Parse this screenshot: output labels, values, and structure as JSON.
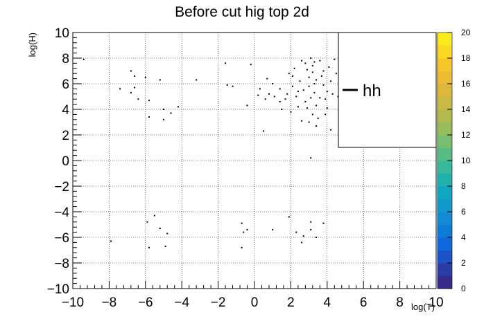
{
  "chart_data": {
    "type": "heatmap",
    "title": "Before cut hig top 2d",
    "xlabel": "log(T)",
    "ylabel": "log(H)",
    "xlim": [
      -10,
      10
    ],
    "ylim": [
      -10,
      10
    ],
    "grid": true,
    "x_ticks": [
      -10,
      -8,
      -6,
      -4,
      -2,
      0,
      2,
      4,
      6,
      8,
      10
    ],
    "y_ticks": [
      -10,
      -8,
      -6,
      -4,
      -2,
      0,
      2,
      4,
      6,
      8,
      10
    ],
    "x_tick_labels": [
      "−10",
      "−8",
      "−6",
      "−4",
      "−2",
      "0",
      "2",
      "4",
      "6",
      "8",
      "10"
    ],
    "y_tick_labels": [
      "−10",
      "−8",
      "−6",
      "−4",
      "−2",
      "0",
      "2",
      "4",
      "6",
      "8",
      "10"
    ],
    "colorbar": {
      "range": [
        0,
        20
      ],
      "ticks": [
        0,
        2,
        4,
        6,
        8,
        10,
        12,
        14,
        16,
        18,
        20
      ],
      "tick_labels": [
        "0",
        "2",
        "4",
        "6",
        "8",
        "10",
        "12",
        "14",
        "16",
        "18",
        "20"
      ],
      "colors": [
        "#352a87",
        "#2a3ca6",
        "#1b54c8",
        "#0f69dc",
        "#0d7bd8",
        "#138ad3",
        "#1499cc",
        "#0fa7c0",
        "#21b1ac",
        "#38b99b",
        "#57bd85",
        "#78be70",
        "#98bd5c",
        "#b3bb4e",
        "#c9ba45",
        "#dcb93c",
        "#edbb34",
        "#f8c52b",
        "#fbd824",
        "#f8ea1c"
      ]
    },
    "legend": {
      "position": "top-right",
      "entries": [
        "hh"
      ]
    },
    "series": [
      {
        "name": "hh",
        "points": [
          [
            -9.4,
            7.9
          ],
          [
            -7.4,
            5.6
          ],
          [
            -6.8,
            7.0
          ],
          [
            -6.6,
            6.6
          ],
          [
            -6.6,
            5.7
          ],
          [
            -6.8,
            5.3
          ],
          [
            -6.4,
            4.8
          ],
          [
            -6.0,
            6.5
          ],
          [
            -5.2,
            6.3
          ],
          [
            -5.8,
            4.7
          ],
          [
            -5.0,
            4.0
          ],
          [
            -4.6,
            3.7
          ],
          [
            -4.2,
            4.2
          ],
          [
            -5.8,
            3.4
          ],
          [
            -5.0,
            3.2
          ],
          [
            -3.2,
            6.3
          ],
          [
            -1.6,
            7.6
          ],
          [
            -1.5,
            5.9
          ],
          [
            -1.2,
            5.8
          ],
          [
            -0.2,
            7.5
          ],
          [
            -0.4,
            4.3
          ],
          [
            0.2,
            5.1
          ],
          [
            0.3,
            5.6
          ],
          [
            0.8,
            5.2
          ],
          [
            0.6,
            4.8
          ],
          [
            0.5,
            2.3
          ],
          [
            0.7,
            6.4
          ],
          [
            1.0,
            6.0
          ],
          [
            1.1,
            5.0
          ],
          [
            1.4,
            5.6
          ],
          [
            1.5,
            4.0
          ],
          [
            1.7,
            4.8
          ],
          [
            1.8,
            5.2
          ],
          [
            1.9,
            6.8
          ],
          [
            2.1,
            5.8
          ],
          [
            2.2,
            7.2
          ],
          [
            2.3,
            5.0
          ],
          [
            2.4,
            4.2
          ],
          [
            2.5,
            6.2
          ],
          [
            2.6,
            7.8
          ],
          [
            2.7,
            5.5
          ],
          [
            2.8,
            4.6
          ],
          [
            2.9,
            7.1
          ],
          [
            3.0,
            6.5
          ],
          [
            3.0,
            5.8
          ],
          [
            3.1,
            4.9
          ],
          [
            3.1,
            8.0
          ],
          [
            3.2,
            7.4
          ],
          [
            3.2,
            6.9
          ],
          [
            3.3,
            6.0
          ],
          [
            3.3,
            5.3
          ],
          [
            3.4,
            4.3
          ],
          [
            3.2,
            3.6
          ],
          [
            3.0,
            3.0
          ],
          [
            3.4,
            2.7
          ],
          [
            3.6,
            7.8
          ],
          [
            3.7,
            6.6
          ],
          [
            3.8,
            5.9
          ],
          [
            3.9,
            4.8
          ],
          [
            4.0,
            4.1
          ],
          [
            4.1,
            7.3
          ],
          [
            4.2,
            6.2
          ],
          [
            4.3,
            5.2
          ],
          [
            4.4,
            7.9
          ],
          [
            4.5,
            6.8
          ],
          [
            4.6,
            5.0
          ],
          [
            3.5,
            3.3
          ],
          [
            2.0,
            3.8
          ],
          [
            2.6,
            3.1
          ],
          [
            3.9,
            3.6
          ],
          [
            4.2,
            2.4
          ],
          [
            3.1,
            0.2
          ],
          [
            3.4,
            6.3
          ],
          [
            2.8,
            7.6
          ],
          [
            2.4,
            5.4
          ],
          [
            3.8,
            7.0
          ],
          [
            4.0,
            5.4
          ],
          [
            2.9,
            4.1
          ],
          [
            3.3,
            7.7
          ],
          [
            2.1,
            6.6
          ],
          [
            1.4,
            4.6
          ],
          [
            3.6,
            4.9
          ],
          [
            -5.9,
            -4.8
          ],
          [
            -5.5,
            -4.3
          ],
          [
            -5.2,
            -5.3
          ],
          [
            -4.8,
            -5.7
          ],
          [
            -5.8,
            -6.8
          ],
          [
            -4.9,
            -6.7
          ],
          [
            -7.9,
            -6.3
          ],
          [
            -0.7,
            -4.9
          ],
          [
            -0.6,
            -5.6
          ],
          [
            -0.4,
            -5.4
          ],
          [
            -0.7,
            -6.8
          ],
          [
            1.0,
            -5.4
          ],
          [
            1.9,
            -4.4
          ],
          [
            2.3,
            -5.6
          ],
          [
            2.7,
            -5.9
          ],
          [
            3.1,
            -4.8
          ],
          [
            3.1,
            -5.4
          ],
          [
            3.4,
            -6.0
          ],
          [
            3.8,
            -4.9
          ],
          [
            2.6,
            -6.4
          ]
        ]
      }
    ]
  }
}
